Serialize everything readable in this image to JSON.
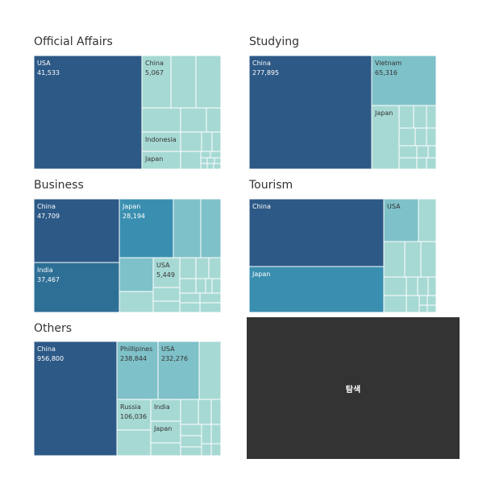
{
  "chart_data": [
    {
      "type": "treemap",
      "title": "Official Affairs",
      "cells": [
        {
          "label": "USA",
          "value": "41,533"
        },
        {
          "label": "China",
          "value": "5,067"
        },
        {
          "label": "Indonesia",
          "value": ""
        },
        {
          "label": "Japan",
          "value": ""
        }
      ]
    },
    {
      "type": "treemap",
      "title": "Studying",
      "cells": [
        {
          "label": "China",
          "value": "277,895"
        },
        {
          "label": "Vietnam",
          "value": "65,316"
        },
        {
          "label": "Japan",
          "value": ""
        }
      ]
    },
    {
      "type": "treemap",
      "title": "Business",
      "cells": [
        {
          "label": "China",
          "value": "47,709"
        },
        {
          "label": "Japan",
          "value": "28,194"
        },
        {
          "label": "India",
          "value": "37,467"
        },
        {
          "label": "USA",
          "value": "5,449"
        }
      ]
    },
    {
      "type": "treemap",
      "title": "Tourism",
      "cells": [
        {
          "label": "China",
          "value": ""
        },
        {
          "label": "USA",
          "value": ""
        },
        {
          "label": "Japan",
          "value": ""
        }
      ]
    },
    {
      "type": "treemap",
      "title": "Others",
      "cells": [
        {
          "label": "China",
          "value": "956,800"
        },
        {
          "label": "Phillipines",
          "value": "238,844"
        },
        {
          "label": "USA",
          "value": "232,276"
        },
        {
          "label": "Russia",
          "value": "106,036"
        },
        {
          "label": "India",
          "value": ""
        },
        {
          "label": "Japan",
          "value": ""
        }
      ]
    }
  ],
  "explore_button": {
    "label": "탐색"
  },
  "colors": {
    "darkest": "#2d5986",
    "dark": "#2e6f96",
    "mid_dark": "#3a8fb0",
    "mid": "#7fc1c8",
    "light": "#a7d9d4",
    "lightest": "#bfe4df",
    "border": "#ffffff",
    "explore_bg": "#333333"
  }
}
